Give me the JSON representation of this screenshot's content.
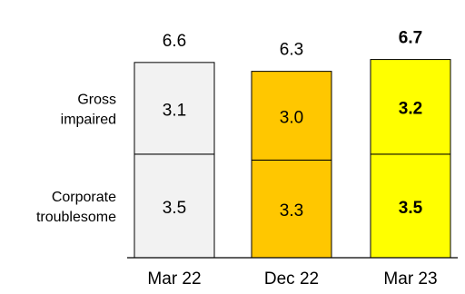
{
  "chart_data": {
    "type": "bar",
    "stacked": true,
    "categories": [
      "Mar 22",
      "Dec 22",
      "Mar 23"
    ],
    "series": [
      {
        "name": "Corporate troublesome",
        "label_lines": [
          "Corporate",
          "troublesome"
        ],
        "values": [
          3.5,
          3.3,
          3.5
        ]
      },
      {
        "name": "Gross impaired",
        "label_lines": [
          "Gross",
          "impaired"
        ],
        "values": [
          3.1,
          3.0,
          3.2
        ]
      }
    ],
    "totals": [
      6.6,
      6.3,
      6.7
    ],
    "display_values": {
      "totals": [
        "6.6",
        "6.3",
        "6.7"
      ],
      "series": [
        [
          "3.5",
          "3.3",
          "3.5"
        ],
        [
          "3.1",
          "3.0",
          "3.2"
        ]
      ]
    },
    "bar_colors": [
      "#f2f2f2",
      "#ffc700",
      "#ffff00"
    ],
    "bold_categories": [
      false,
      false,
      true
    ],
    "title": "",
    "xlabel": "",
    "ylabel": "",
    "ylim": [
      0,
      7.0
    ],
    "grid": false,
    "legend": "left (labels beside segments)"
  }
}
